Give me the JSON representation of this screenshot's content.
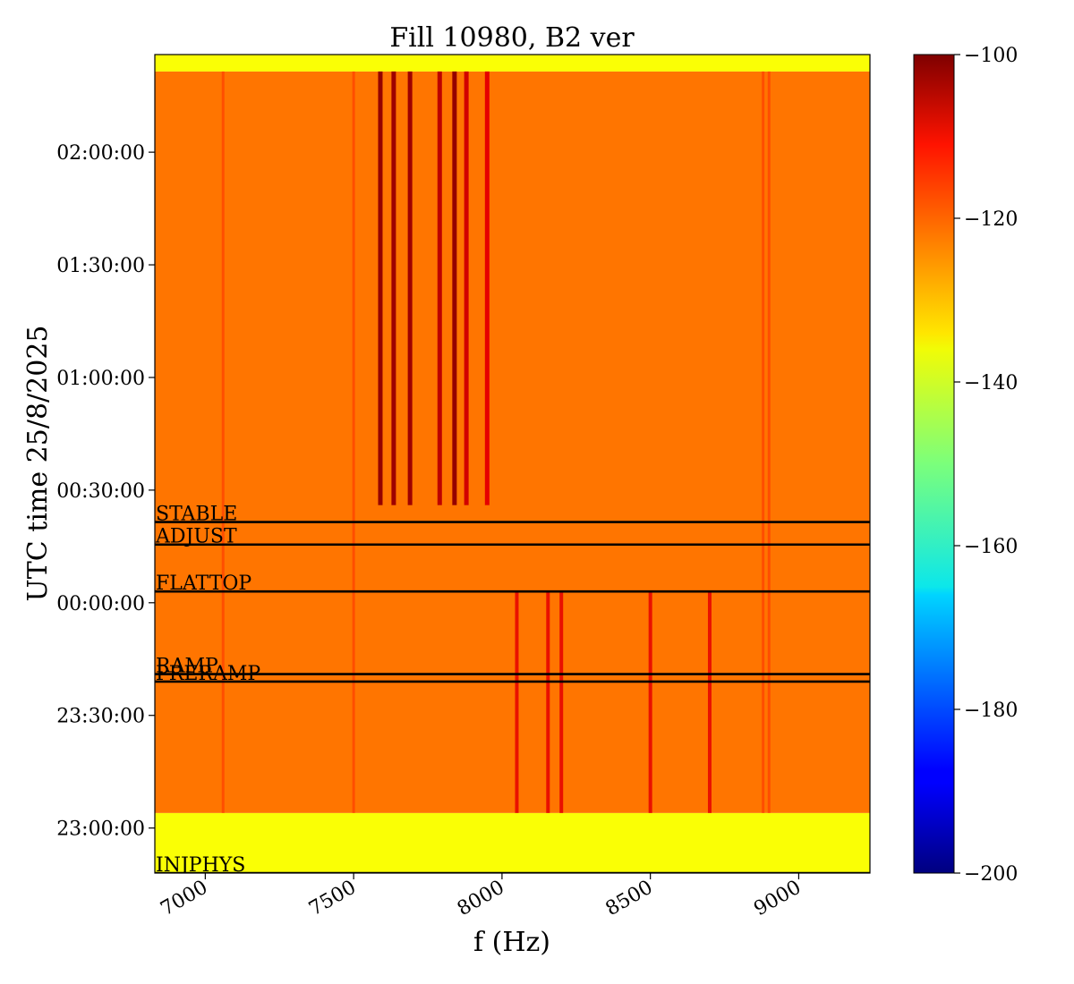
{
  "chart_data": {
    "type": "heatmap",
    "title": "Fill 10980, B2 ver",
    "xlabel": "f (Hz)",
    "ylabel": "UTC time 25/8/2025",
    "xlim": [
      6830,
      9240
    ],
    "x_ticks": [
      7000,
      7500,
      8000,
      8500,
      9000
    ],
    "y_ticks": [
      "23:00:00",
      "23:30:00",
      "00:00:00",
      "00:30:00",
      "01:00:00",
      "01:30:00",
      "02:00:00"
    ],
    "y_range": [
      "22:48:00",
      "02:26:00"
    ],
    "colorbar": {
      "colormap": "jet",
      "min": -200,
      "max": -100,
      "ticks": [
        -100,
        -120,
        -140,
        -160,
        -180,
        -200
      ]
    },
    "background_levels": {
      "before_beam": -138,
      "during_beam": -124,
      "after_end": -138
    },
    "beam_period": [
      "23:04:00",
      "02:21:30"
    ],
    "event_markers": [
      {
        "label": "INJPHYS",
        "time": "22:48:00"
      },
      {
        "label": "PRERAMP",
        "time": "23:39:00"
      },
      {
        "label": "RAMP",
        "time": "23:41:00"
      },
      {
        "label": "FLATTOP",
        "time": "00:03:00"
      },
      {
        "label": "ADJUST",
        "time": "00:15:30"
      },
      {
        "label": "STABLE",
        "time": "00:21:30"
      }
    ],
    "strong_lines": [
      {
        "f": 7590,
        "start": "00:26:00",
        "end": "02:21:30",
        "level": -102
      },
      {
        "f": 7635,
        "start": "00:26:00",
        "end": "02:21:30",
        "level": -103
      },
      {
        "f": 7690,
        "start": "00:26:00",
        "end": "02:21:30",
        "level": -103
      },
      {
        "f": 7790,
        "start": "00:26:00",
        "end": "02:21:30",
        "level": -106
      },
      {
        "f": 7840,
        "start": "00:26:00",
        "end": "02:21:30",
        "level": -102
      },
      {
        "f": 7880,
        "start": "00:26:00",
        "end": "02:21:30",
        "level": -108
      },
      {
        "f": 7950,
        "start": "00:26:00",
        "end": "02:21:30",
        "level": -110
      }
    ],
    "faint_lines": [
      7060,
      7500,
      8880,
      8900
    ],
    "ramp_lines": [
      8050,
      8155,
      8200,
      8500,
      8700
    ]
  }
}
